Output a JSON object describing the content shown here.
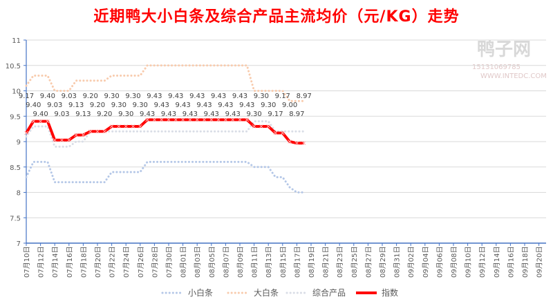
{
  "chart_data": {
    "type": "line",
    "title": "近期鸭大小白条及综合产品主流均价（元/KG）走势",
    "xlabel": "",
    "ylabel": "",
    "ylim": [
      7,
      11
    ],
    "yticks": [
      "7",
      "7.5",
      "8",
      "8.5",
      "9",
      "9.5",
      "10",
      "10.5",
      "11"
    ],
    "grid": true,
    "legend_position": "bottom",
    "x_start": "07-10",
    "x_end": "09-20",
    "x_label_format": "MM月DD日",
    "series": [
      {
        "name": "小白条",
        "color": "#b4c7e7",
        "style": "dotted",
        "values": [
          8.3,
          8.6,
          8.6,
          8.6,
          8.2,
          8.2,
          8.2,
          8.2,
          8.2,
          8.2,
          8.2,
          8.2,
          8.4,
          8.4,
          8.4,
          8.4,
          8.4,
          8.6,
          8.6,
          8.6,
          8.6,
          8.6,
          8.6,
          8.6,
          8.6,
          8.6,
          8.6,
          8.6,
          8.6,
          8.6,
          8.6,
          8.6,
          8.5,
          8.5,
          8.5,
          8.3,
          8.3,
          8.1,
          8.0,
          8.0
        ]
      },
      {
        "name": "大白条",
        "color": "#f8cbad",
        "style": "dotted",
        "values": [
          10.1,
          10.3,
          10.3,
          10.3,
          10.0,
          10.0,
          10.0,
          10.2,
          10.2,
          10.2,
          10.2,
          10.2,
          10.3,
          10.3,
          10.3,
          10.3,
          10.3,
          10.5,
          10.5,
          10.5,
          10.5,
          10.5,
          10.5,
          10.5,
          10.5,
          10.5,
          10.5,
          10.5,
          10.5,
          10.5,
          10.5,
          10.5,
          10.0,
          10.0,
          10.0,
          10.0,
          10.0,
          9.8,
          9.8,
          9.8
        ]
      },
      {
        "name": "综合产品",
        "color": "#d9dde6",
        "style": "dotted",
        "values": [
          9.1,
          9.3,
          9.3,
          9.3,
          8.9,
          8.9,
          8.9,
          9.0,
          9.0,
          9.2,
          9.2,
          9.2,
          9.2,
          9.2,
          9.2,
          9.2,
          9.2,
          9.2,
          9.2,
          9.2,
          9.2,
          9.2,
          9.2,
          9.2,
          9.2,
          9.2,
          9.2,
          9.2,
          9.2,
          9.2,
          9.2,
          9.2,
          9.4,
          9.4,
          9.4,
          9.2,
          9.2,
          9.2,
          9.2,
          9.2
        ]
      },
      {
        "name": "指数",
        "color": "#ff0000",
        "style": "solid-marker",
        "values": [
          9.17,
          9.4,
          9.4,
          9.4,
          9.03,
          9.03,
          9.03,
          9.13,
          9.13,
          9.2,
          9.2,
          9.2,
          9.3,
          9.3,
          9.3,
          9.3,
          9.3,
          9.43,
          9.43,
          9.43,
          9.43,
          9.43,
          9.43,
          9.43,
          9.43,
          9.43,
          9.43,
          9.43,
          9.43,
          9.43,
          9.43,
          9.43,
          9.3,
          9.3,
          9.3,
          9.17,
          9.17,
          9.0,
          8.97,
          8.97
        ]
      }
    ]
  },
  "watermark": {
    "logo_text": "鸭子网",
    "phone": "15131069785",
    "site": "WWW.INTEDC.COM"
  }
}
